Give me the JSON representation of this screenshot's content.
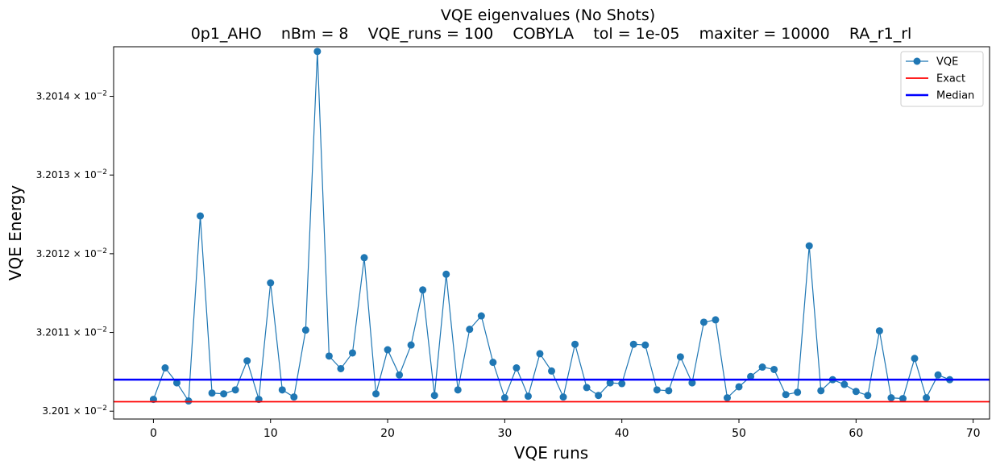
{
  "chart_data": {
    "type": "line",
    "title": "VQE eigenvalues (No Shots)",
    "subtitle": "0p1_AHO    nBm = 8    VQE_runs = 100    COBYLA    tol = 1e-05    maxiter = 10000    RA_r1_rl",
    "xlabel": "VQE runs",
    "ylabel": "VQE Energy",
    "xlim": [
      -3.4,
      71.4
    ],
    "ylim": [
      0.0320099,
      0.03201463
    ],
    "x_ticks": [
      0,
      10,
      20,
      30,
      40,
      50,
      60,
      70
    ],
    "x_tick_labels": [
      "0",
      "10",
      "20",
      "30",
      "40",
      "50",
      "60",
      "70"
    ],
    "y_ticks": [
      0.03201,
      0.032011,
      0.032012,
      0.032013,
      0.032014
    ],
    "y_tick_mantissas": [
      "3.201",
      "3.2011",
      "3.2012",
      "3.2013",
      "3.2014"
    ],
    "y_tick_base": "× 10",
    "y_tick_exponent": "−2",
    "y_scale": "log",
    "legend_position": "top-right",
    "colors": {
      "vqe": "#1f77b4",
      "exact": "#ff0000",
      "median": "#0000ff"
    },
    "series": [
      {
        "name": "VQE",
        "style": "line-marker",
        "x": [
          0,
          1,
          2,
          3,
          4,
          5,
          6,
          7,
          8,
          9,
          10,
          11,
          12,
          13,
          14,
          15,
          16,
          17,
          18,
          19,
          20,
          21,
          22,
          23,
          24,
          25,
          26,
          27,
          28,
          29,
          30,
          31,
          32,
          33,
          34,
          35,
          36,
          37,
          38,
          39,
          40,
          41,
          42,
          43,
          44,
          45,
          46,
          47,
          48,
          49,
          50,
          51,
          52,
          53,
          54,
          55,
          56,
          57,
          58,
          59,
          60,
          61,
          62,
          63,
          64,
          65,
          66,
          67,
          68
        ],
        "values": [
          0.03201015,
          0.03201055,
          0.03201036,
          0.03201013,
          0.03201248,
          0.03201023,
          0.03201022,
          0.03201027,
          0.03201064,
          0.03201015,
          0.03201163,
          0.03201027,
          0.03201018,
          0.03201103,
          0.03201457,
          0.0320107,
          0.03201054,
          0.03201074,
          0.03201195,
          0.03201022,
          0.03201078,
          0.03201046,
          0.03201084,
          0.03201154,
          0.0320102,
          0.03201174,
          0.03201027,
          0.03201104,
          0.03201121,
          0.03201062,
          0.03201017,
          0.03201055,
          0.03201019,
          0.03201073,
          0.03201051,
          0.03201018,
          0.03201085,
          0.0320103,
          0.0320102,
          0.03201036,
          0.03201035,
          0.03201085,
          0.03201084,
          0.03201027,
          0.03201026,
          0.03201069,
          0.03201036,
          0.03201113,
          0.03201116,
          0.03201017,
          0.03201031,
          0.03201044,
          0.03201056,
          0.03201053,
          0.03201021,
          0.03201024,
          0.0320121,
          0.03201026,
          0.0320104,
          0.03201034,
          0.03201025,
          0.0320102,
          0.03201102,
          0.03201017,
          0.03201016,
          0.03201067,
          0.03201017,
          0.03201046,
          0.0320104
        ]
      },
      {
        "name": "Exact",
        "style": "hline",
        "value": 0.03201012
      },
      {
        "name": "Median",
        "style": "hline",
        "value": 0.0320104
      }
    ]
  }
}
